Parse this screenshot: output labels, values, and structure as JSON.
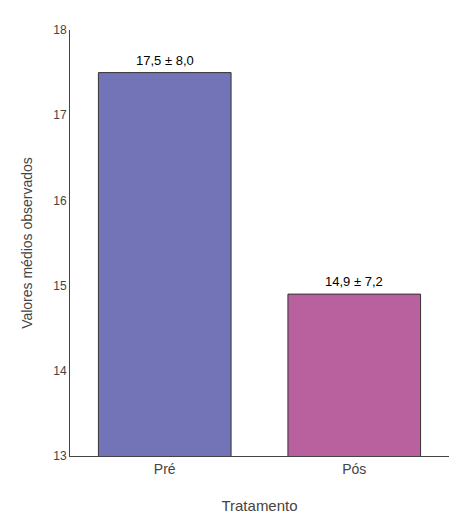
{
  "chart_data": {
    "type": "bar",
    "categories": [
      "Pré",
      "Pós"
    ],
    "values": [
      17.5,
      14.9
    ],
    "value_labels": [
      "17,5 ± 8,0",
      "14,9 ± 7,2"
    ],
    "data_labels": true,
    "colors": [
      "#7373b8",
      "#b8619e"
    ],
    "xlabel": "Tratamento",
    "ylabel": "Valores médios observados",
    "ylim": [
      13,
      18
    ],
    "yticks": [
      13,
      14,
      15,
      16,
      17,
      18
    ],
    "grid": false
  }
}
